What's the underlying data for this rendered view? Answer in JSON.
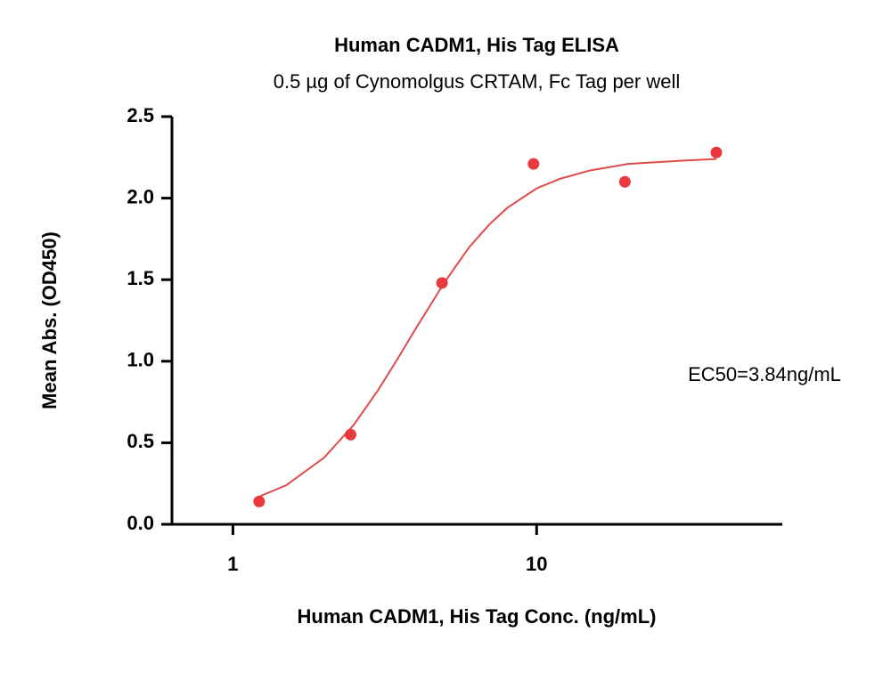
{
  "chart_data": {
    "type": "scatter",
    "title": "Human CADM1, His Tag ELISA",
    "subtitle": "0.5 µg of Cynomolgus CRTAM, Fc Tag per well",
    "x_label": "Human CADM1, His Tag Conc. (ng/mL)",
    "y_label": "Mean Abs. (OD450)",
    "annotation": "EC50=3.84ng/mL",
    "x_scale": "log",
    "x": [
      1.22,
      2.44,
      4.88,
      9.77,
      19.53,
      39.06
    ],
    "values": [
      0.14,
      0.55,
      1.48,
      2.21,
      2.1,
      2.28
    ],
    "color": "#e8393e",
    "fit_curve": {
      "x": [
        1.22,
        1.5,
        2,
        2.5,
        3,
        3.5,
        4,
        5,
        6,
        7,
        8,
        10,
        12,
        15,
        20,
        30,
        39.06
      ],
      "values": [
        0.17,
        0.24,
        0.41,
        0.61,
        0.82,
        1.02,
        1.2,
        1.49,
        1.7,
        1.84,
        1.94,
        2.06,
        2.12,
        2.17,
        2.21,
        2.23,
        2.24
      ],
      "color": "#e04a4a"
    },
    "xlim": [
      0.63,
      64.4
    ],
    "xticks": [
      1,
      10
    ],
    "ylim": [
      0,
      2.5
    ],
    "yticks": [
      {
        "value": 0,
        "label": "0.0"
      },
      0.5,
      {
        "value": 1,
        "label": "1.0"
      },
      1.5,
      {
        "value": 2,
        "label": "2.0"
      },
      2.5
    ]
  }
}
